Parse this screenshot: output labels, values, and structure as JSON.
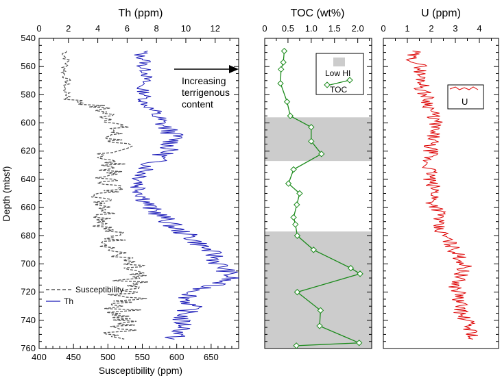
{
  "colors": {
    "susceptibility": "#555555",
    "th": "#1a1ab8",
    "toc": "#1a8a1a",
    "u": "#dd0000",
    "low_hi_shade": "#cccccc",
    "axes": "#000000"
  },
  "chart_data": [
    {
      "type": "line",
      "panel": "th-susceptibility",
      "ylabel": "Depth (mbsf)",
      "ylim": [
        540,
        760
      ],
      "y_inverted": true,
      "y_ticks": [
        540,
        560,
        580,
        600,
        620,
        640,
        660,
        680,
        700,
        720,
        740,
        760
      ],
      "top_axis": {
        "label": "Th (ppm)",
        "range": [
          0,
          13.6
        ],
        "ticks": [
          0,
          2,
          4,
          6,
          8,
          10,
          12
        ]
      },
      "bottom_axis": {
        "label": "Susceptibility (ppm)",
        "range": [
          400,
          690
        ],
        "ticks": [
          400,
          450,
          500,
          550,
          600,
          650
        ]
      },
      "annotation": {
        "text_lines": [
          "Increasing",
          "terrigenous",
          "content"
        ],
        "arrow": "right"
      },
      "legend": {
        "placement": "bottom-left",
        "entries": [
          "Susceptibility",
          "Th"
        ]
      },
      "series": [
        {
          "name": "Susceptibility",
          "axis": "bottom",
          "style": "dashed",
          "depth": [
            549,
            552,
            556,
            560,
            565,
            570,
            575,
            580,
            584,
            586,
            590,
            595,
            600,
            605,
            610,
            615,
            620,
            625,
            630,
            635,
            640,
            645,
            650,
            655,
            660,
            665,
            670,
            675,
            680,
            685,
            690,
            695,
            700,
            705,
            710,
            715,
            720,
            725,
            730,
            735,
            740,
            745,
            750,
            754
          ],
          "values": [
            440,
            436,
            442,
            438,
            436,
            441,
            437,
            440,
            452,
            470,
            490,
            500,
            515,
            510,
            505,
            520,
            508,
            495,
            510,
            500,
            496,
            512,
            500,
            490,
            505,
            498,
            500,
            495,
            515,
            508,
            505,
            520,
            525,
            530,
            528,
            535,
            522,
            530,
            520,
            525,
            518,
            522,
            515,
            525
          ]
        },
        {
          "name": "Th",
          "axis": "top",
          "style": "solid",
          "depth": [
            549,
            552,
            556,
            560,
            565,
            570,
            575,
            580,
            585,
            590,
            595,
            600,
            605,
            610,
            615,
            620,
            625,
            630,
            635,
            640,
            645,
            650,
            655,
            660,
            665,
            670,
            675,
            680,
            685,
            690,
            695,
            700,
            705,
            710,
            715,
            720,
            725,
            730,
            735,
            740,
            745,
            750,
            754
          ],
          "values": [
            7.2,
            6.8,
            7.3,
            7.0,
            7.4,
            7.2,
            6.9,
            7.3,
            7.1,
            7.6,
            8.0,
            8.3,
            8.8,
            9.3,
            9.0,
            8.7,
            8.2,
            7.6,
            7.2,
            7.0,
            6.8,
            7.1,
            7.3,
            7.5,
            8.2,
            8.8,
            9.3,
            10.2,
            10.8,
            11.5,
            12.0,
            12.2,
            12.8,
            13.0,
            11.8,
            10.6,
            10.1,
            10.4,
            10.0,
            9.6,
            10.0,
            9.4,
            9.0
          ]
        }
      ]
    },
    {
      "type": "line",
      "panel": "toc",
      "title": "TOC (wt%)",
      "ylim": [
        540,
        760
      ],
      "y_inverted": true,
      "xlim": [
        0,
        2.3
      ],
      "x_ticks": [
        0,
        0.5,
        1.0,
        1.5,
        2.0
      ],
      "x_tick_labels": [
        "0",
        "0.5",
        "1.0",
        "1.5",
        "2.0"
      ],
      "shaded_intervals": [
        [
          596,
          627
        ],
        [
          677,
          760
        ]
      ],
      "legend": {
        "placement": "top-right",
        "entries": [
          "Low HI",
          "TOC"
        ]
      },
      "series": [
        {
          "name": "TOC",
          "marker": "diamond",
          "depth": [
            549,
            557,
            562,
            572,
            585,
            595,
            603,
            613,
            622,
            633,
            643,
            650,
            658,
            667,
            672,
            680,
            690,
            703,
            707,
            720,
            733,
            744,
            756,
            758
          ],
          "values": [
            0.42,
            0.4,
            0.35,
            0.34,
            0.48,
            0.55,
            1.0,
            1.0,
            1.22,
            0.62,
            0.51,
            0.75,
            0.69,
            0.62,
            0.66,
            0.7,
            1.05,
            1.85,
            2.05,
            0.7,
            1.2,
            1.18,
            2.03,
            0.68
          ]
        }
      ]
    },
    {
      "type": "line",
      "panel": "u",
      "title": "U (ppm)",
      "ylim": [
        540,
        760
      ],
      "y_inverted": true,
      "xlim": [
        0,
        4.8
      ],
      "x_ticks": [
        0,
        1,
        2,
        3,
        4
      ],
      "legend": {
        "placement": "top-right",
        "entries": [
          "U"
        ]
      },
      "series": [
        {
          "name": "U",
          "depth": [
            549,
            553,
            557,
            561,
            566,
            571,
            576,
            581,
            586,
            591,
            596,
            601,
            606,
            611,
            616,
            621,
            626,
            631,
            636,
            641,
            646,
            651,
            656,
            661,
            666,
            671,
            676,
            681,
            686,
            691,
            696,
            701,
            706,
            711,
            716,
            721,
            726,
            731,
            736,
            741,
            746,
            751,
            754
          ],
          "values": [
            1.3,
            1.1,
            1.4,
            1.6,
            1.5,
            1.7,
            1.6,
            1.8,
            1.9,
            2.0,
            2.1,
            2.2,
            2.0,
            2.1,
            1.9,
            2.0,
            1.8,
            1.9,
            2.0,
            1.9,
            2.1,
            2.2,
            2.0,
            2.3,
            2.4,
            2.2,
            2.3,
            2.6,
            2.8,
            3.0,
            3.2,
            3.4,
            3.3,
            3.1,
            3.0,
            3.2,
            3.1,
            3.3,
            3.2,
            3.5,
            3.6,
            3.8,
            3.4
          ]
        }
      ]
    }
  ]
}
